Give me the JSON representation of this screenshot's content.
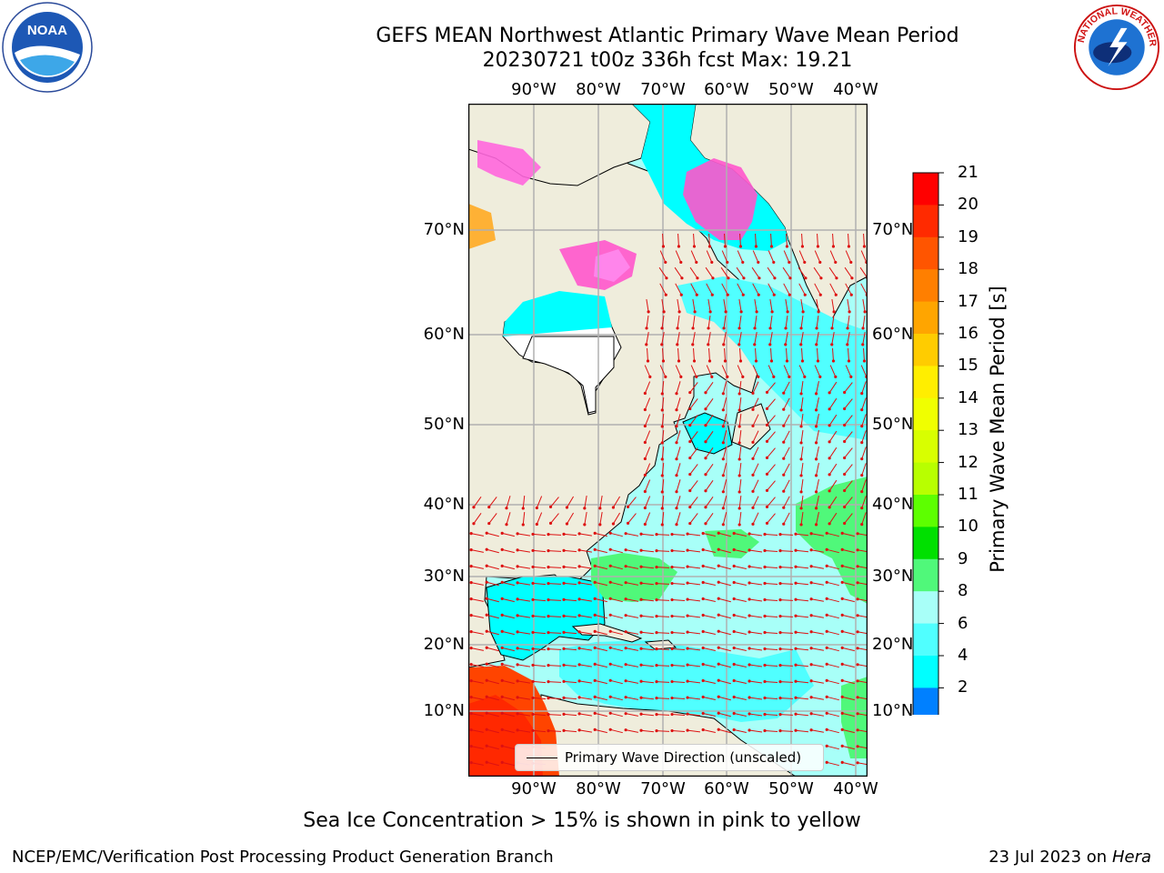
{
  "title_line1": "GEFS MEAN Northwest Atlantic Primary Wave Mean Period",
  "title_line2": "20230721 t00z 336h fcst   Max: 19.21",
  "subtitle": "Sea Ice Concentration > 15% is shown in pink to yellow",
  "footer_left": "NCEP/EMC/Verification Post Processing Product Generation Branch",
  "footer_date": "23 Jul 2023 on ",
  "footer_host": "Hera",
  "logo_left_text": "NOAA",
  "logo_right_text": "NATIONAL WEATHER SERVICE",
  "legend_label": "Primary Wave Direction (unscaled)",
  "lon_labels": [
    "90°W",
    "80°W",
    "70°W",
    "60°W",
    "50°W",
    "40°W"
  ],
  "lat_labels": [
    "70°N",
    "60°N",
    "50°N",
    "40°N",
    "30°N",
    "20°N",
    "10°N"
  ],
  "colorbar": {
    "label": "Primary Wave Mean Period [s]",
    "ticks": [
      "21",
      "20",
      "19",
      "18",
      "17",
      "16",
      "15",
      "14",
      "13",
      "12",
      "11",
      "10",
      "9",
      "8",
      "6",
      "4",
      "2"
    ],
    "colors": [
      "#ff0000",
      "#ff2a00",
      "#ff5500",
      "#ff7f00",
      "#ffa500",
      "#ffcc00",
      "#ffee00",
      "#f0ff00",
      "#d8ff00",
      "#b8ff00",
      "#5dff00",
      "#00e000",
      "#50f87a",
      "#a8fff8",
      "#50ffff",
      "#00ffff",
      "#0080ff"
    ],
    "extend_color": "#0000ff"
  },
  "colors": {
    "land": "#efeddc",
    "sea_ice_white": "#ffffff",
    "arrow": "#dd1111",
    "grid": "#b0b0b0"
  }
}
